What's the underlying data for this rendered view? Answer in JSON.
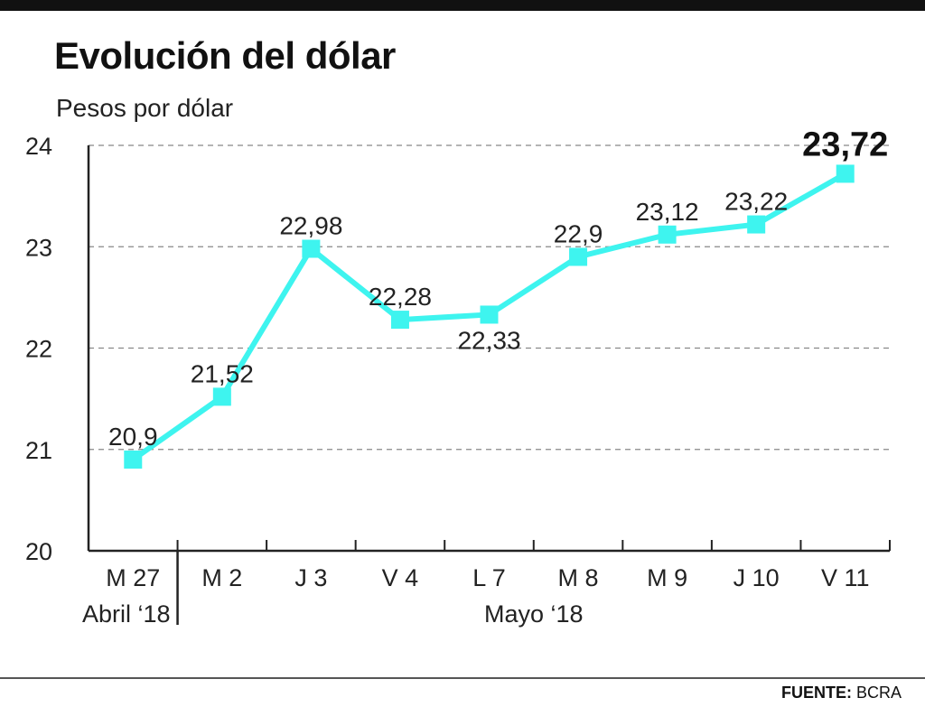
{
  "title": "Evolución del dólar",
  "subtitle": "Pesos por dólar",
  "source": {
    "label": "FUENTE:",
    "value": "BCRA"
  },
  "colors": {
    "line": "#3ef4ef",
    "axis": "#222222",
    "grid": "#888888",
    "top_bar": "#111111"
  },
  "chart_data": {
    "type": "line",
    "title": "Evolución del dólar",
    "ylabel": "Pesos por dólar",
    "xlabel": "",
    "categories": [
      "M 27",
      "M 2",
      "J 3",
      "V 4",
      "L 7",
      "M 8",
      "M 9",
      "J 10",
      "V  11"
    ],
    "values": [
      20.9,
      21.52,
      22.98,
      22.28,
      22.33,
      22.9,
      23.12,
      23.22,
      23.72
    ],
    "data_labels": [
      "20,9",
      "21,52",
      "22,98",
      "22,28",
      "22,33",
      "22,9",
      "23,12",
      "23,22",
      "23,72"
    ],
    "label_side": [
      "above",
      "above",
      "above",
      "above",
      "below",
      "above",
      "above",
      "above",
      "above"
    ],
    "emphasized_index": 8,
    "ylim": [
      20,
      24
    ],
    "yticks": [
      20,
      21,
      22,
      23,
      24
    ],
    "ytick_labels": [
      "20",
      "21",
      "22",
      "23",
      "24"
    ],
    "grid": true,
    "grid_style": "dashed",
    "marker": "square",
    "periods": [
      {
        "label": "Abril ‘18",
        "from": 0,
        "to": 0
      },
      {
        "label": "Mayo ‘18",
        "from": 1,
        "to": 8
      }
    ],
    "legend": "none"
  }
}
